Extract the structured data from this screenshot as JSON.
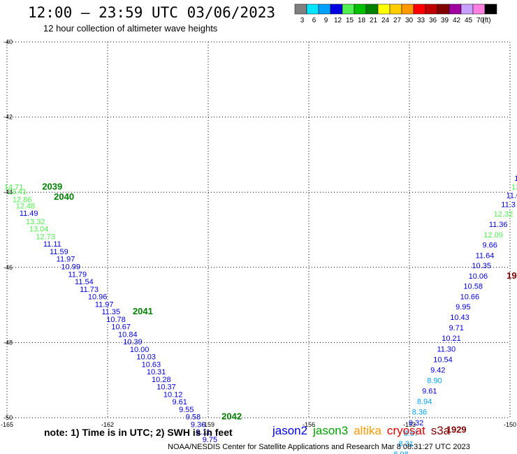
{
  "header": {
    "title": "12:00 – 23:59 UTC 03/06/2023",
    "subtitle": "12 hour collection of altimeter wave heights"
  },
  "colorbar": {
    "unit": "(ft)",
    "bins": [
      {
        "color": "#808080",
        "label": "3"
      },
      {
        "color": "#00e5ff",
        "label": "6"
      },
      {
        "color": "#00a0ff",
        "label": "9"
      },
      {
        "color": "#0000e0",
        "label": "12"
      },
      {
        "color": "#50f050",
        "label": "15"
      },
      {
        "color": "#00c000",
        "label": "18"
      },
      {
        "color": "#008000",
        "label": "21"
      },
      {
        "color": "#ffff00",
        "label": "24"
      },
      {
        "color": "#ffcc00",
        "label": "27"
      },
      {
        "color": "#ff9900",
        "label": "30"
      },
      {
        "color": "#ff0000",
        "label": "33"
      },
      {
        "color": "#c00000",
        "label": "36"
      },
      {
        "color": "#800000",
        "label": "39"
      },
      {
        "color": "#a000a0",
        "label": "42"
      },
      {
        "color": "#c8a0ff",
        "label": "45"
      },
      {
        "color": "#ff80e0",
        "label": "70"
      },
      {
        "color": "#000000",
        "label": ""
      }
    ]
  },
  "chart_data": {
    "type": "scatter",
    "xlim": [
      -165,
      -150
    ],
    "ylim": [
      -50,
      -40
    ],
    "x_ticks": [
      {
        "value": -165,
        "label": "-165"
      },
      {
        "value": -162,
        "label": "-162"
      },
      {
        "value": -159,
        "label": "-159"
      },
      {
        "value": -156,
        "label": "-156"
      },
      {
        "value": -153,
        "label": "-153"
      },
      {
        "value": -150,
        "label": "-150"
      }
    ],
    "y_ticks": [
      {
        "value": -40,
        "label": "-40"
      },
      {
        "value": -42,
        "label": "-42"
      },
      {
        "value": -44,
        "label": "-44"
      },
      {
        "value": -46,
        "label": "-46"
      },
      {
        "value": -48,
        "label": "-48"
      },
      {
        "value": -50,
        "label": "-50"
      }
    ],
    "grid": true,
    "track_left": {
      "points": [
        {
          "lon": -164.8,
          "lat": -43.93,
          "v": "14.71",
          "c": "#50f050"
        },
        {
          "lon": -164.7,
          "lat": -44.05,
          "v": "13.41",
          "c": "#50f050"
        },
        {
          "lon": -164.55,
          "lat": -44.27,
          "v": "12.86",
          "c": "#50f050"
        },
        {
          "lon": -164.45,
          "lat": -44.43,
          "v": "12.48",
          "c": "#50f050"
        },
        {
          "lon": -164.35,
          "lat": -44.63,
          "v": "11.49",
          "c": "#0000e0"
        },
        {
          "lon": -164.15,
          "lat": -44.85,
          "v": "13.32",
          "c": "#50f050"
        },
        {
          "lon": -164.05,
          "lat": -45.05,
          "v": "13.04",
          "c": "#50f050"
        },
        {
          "lon": -163.85,
          "lat": -45.25,
          "v": "12.73",
          "c": "#50f050"
        },
        {
          "lon": -163.65,
          "lat": -45.45,
          "v": "11.11",
          "c": "#0000e0"
        },
        {
          "lon": -163.45,
          "lat": -45.65,
          "v": "11.59",
          "c": "#0000e0"
        },
        {
          "lon": -163.25,
          "lat": -45.85,
          "v": "11.97",
          "c": "#0000e0"
        },
        {
          "lon": -163.1,
          "lat": -46.05,
          "v": "10.99",
          "c": "#0000e0"
        },
        {
          "lon": -162.9,
          "lat": -46.25,
          "v": "11.79",
          "c": "#0000e0"
        },
        {
          "lon": -162.7,
          "lat": -46.45,
          "v": "11.54",
          "c": "#0000e0"
        },
        {
          "lon": -162.55,
          "lat": -46.65,
          "v": "11.73",
          "c": "#0000e0"
        },
        {
          "lon": -162.3,
          "lat": -46.85,
          "v": "10.96",
          "c": "#0000e0"
        },
        {
          "lon": -162.1,
          "lat": -47.05,
          "v": "11.97",
          "c": "#0000e0"
        },
        {
          "lon": -161.9,
          "lat": -47.25,
          "v": "11.35",
          "c": "#0000e0"
        },
        {
          "lon": -161.75,
          "lat": -47.45,
          "v": "10.78",
          "c": "#0000e0"
        },
        {
          "lon": -161.6,
          "lat": -47.65,
          "v": "10.67",
          "c": "#0000e0"
        },
        {
          "lon": -161.4,
          "lat": -47.85,
          "v": "10.84",
          "c": "#0000e0"
        },
        {
          "lon": -161.25,
          "lat": -48.05,
          "v": "10.39",
          "c": "#0000e0"
        },
        {
          "lon": -161.05,
          "lat": -48.25,
          "v": "10.00",
          "c": "#0000e0"
        },
        {
          "lon": -160.85,
          "lat": -48.45,
          "v": "10.03",
          "c": "#0000e0"
        },
        {
          "lon": -160.7,
          "lat": -48.65,
          "v": "10.63",
          "c": "#0000e0"
        },
        {
          "lon": -160.55,
          "lat": -48.85,
          "v": "10.31",
          "c": "#0000e0"
        },
        {
          "lon": -160.4,
          "lat": -49.05,
          "v": "10.28",
          "c": "#0000e0"
        },
        {
          "lon": -160.25,
          "lat": -49.25,
          "v": "10.37",
          "c": "#0000e0"
        },
        {
          "lon": -160.05,
          "lat": -49.45,
          "v": "10.12",
          "c": "#0000e0"
        },
        {
          "lon": -159.85,
          "lat": -49.65,
          "v": "9.61",
          "c": "#0000e0"
        },
        {
          "lon": -159.65,
          "lat": -49.85,
          "v": "9.55",
          "c": "#0000e0"
        },
        {
          "lon": -159.45,
          "lat": -50.05,
          "v": "9.58",
          "c": "#0000e0"
        },
        {
          "lon": -159.3,
          "lat": -50.25,
          "v": "9.36",
          "c": "#0000e0"
        },
        {
          "lon": -159.15,
          "lat": -50.45,
          "v": "9.11",
          "c": "#0000e0"
        },
        {
          "lon": -158.95,
          "lat": -50.65,
          "v": "9.75",
          "c": "#0000e0"
        }
      ],
      "time_labels": [
        {
          "lon": -163.65,
          "lat": -43.93,
          "text": "2039",
          "c": "#008000"
        },
        {
          "lon": -163.3,
          "lat": -44.2,
          "text": "2040",
          "c": "#008000"
        },
        {
          "lon": -160.95,
          "lat": -47.25,
          "text": "2041",
          "c": "#008000"
        },
        {
          "lon": -158.3,
          "lat": -50.05,
          "text": "2042",
          "c": "#008000"
        }
      ]
    },
    "track_right": {
      "points": [
        {
          "lon": -149.75,
          "lat": -43.4,
          "v": "1",
          "c": "#50f050"
        },
        {
          "lon": -149.75,
          "lat": -43.7,
          "v": "11",
          "c": "#0000e0"
        },
        {
          "lon": -149.8,
          "lat": -43.93,
          "v": "13.",
          "c": "#50f050"
        },
        {
          "lon": -149.9,
          "lat": -44.15,
          "v": "11.0",
          "c": "#0000e0"
        },
        {
          "lon": -150.05,
          "lat": -44.4,
          "v": "11.3",
          "c": "#0000e0"
        },
        {
          "lon": -150.2,
          "lat": -44.65,
          "v": "12.32",
          "c": "#50f050"
        },
        {
          "lon": -150.35,
          "lat": -44.93,
          "v": "11.36",
          "c": "#0000e0"
        },
        {
          "lon": -150.5,
          "lat": -45.2,
          "v": "12.09",
          "c": "#50f050"
        },
        {
          "lon": -150.6,
          "lat": -45.47,
          "v": "9.66",
          "c": "#0000e0"
        },
        {
          "lon": -150.75,
          "lat": -45.75,
          "v": "11.64",
          "c": "#0000e0"
        },
        {
          "lon": -150.85,
          "lat": -46.02,
          "v": "10.35",
          "c": "#0000e0"
        },
        {
          "lon": -150.95,
          "lat": -46.3,
          "v": "10.06",
          "c": "#0000e0"
        },
        {
          "lon": -151.1,
          "lat": -46.57,
          "v": "10.58",
          "c": "#0000e0"
        },
        {
          "lon": -151.2,
          "lat": -46.85,
          "v": "10.66",
          "c": "#0000e0"
        },
        {
          "lon": -151.4,
          "lat": -47.12,
          "v": "9.95",
          "c": "#0000e0"
        },
        {
          "lon": -151.5,
          "lat": -47.4,
          "v": "10.43",
          "c": "#0000e0"
        },
        {
          "lon": -151.6,
          "lat": -47.68,
          "v": "9.71",
          "c": "#0000e0"
        },
        {
          "lon": -151.75,
          "lat": -47.96,
          "v": "10.21",
          "c": "#0000e0"
        },
        {
          "lon": -151.9,
          "lat": -48.24,
          "v": "11.30",
          "c": "#0000e0"
        },
        {
          "lon": -152.0,
          "lat": -48.52,
          "v": "10.54",
          "c": "#0000e0"
        },
        {
          "lon": -152.15,
          "lat": -48.8,
          "v": "9.42",
          "c": "#0000e0"
        },
        {
          "lon": -152.25,
          "lat": -49.08,
          "v": "8.90",
          "c": "#00a0ff"
        },
        {
          "lon": -152.4,
          "lat": -49.36,
          "v": "9.61",
          "c": "#0000e0"
        },
        {
          "lon": -152.55,
          "lat": -49.64,
          "v": "8.94",
          "c": "#00a0ff"
        },
        {
          "lon": -152.7,
          "lat": -49.92,
          "v": "8.36",
          "c": "#00a0ff"
        },
        {
          "lon": -152.8,
          "lat": -50.2,
          "v": "9.32",
          "c": "#0000e0"
        },
        {
          "lon": -152.95,
          "lat": -50.48,
          "v": "8.57",
          "c": "#00a0ff"
        },
        {
          "lon": -153.1,
          "lat": -50.76,
          "v": "8.31",
          "c": "#00a0ff"
        },
        {
          "lon": -153.25,
          "lat": -51.04,
          "v": "8.98",
          "c": "#00a0ff"
        }
      ],
      "time_labels": [
        {
          "lon": -151.6,
          "lat": -50.4,
          "text": "1929",
          "c": "#800000"
        },
        {
          "lon": -149.95,
          "lat": -46.3,
          "text": "19",
          "c": "#800000"
        }
      ]
    }
  },
  "note": "note:  1) Time is in UTC;  2) SWH is in feet",
  "satellites": [
    {
      "name": "jason2",
      "color": "#0000e0"
    },
    {
      "name": "jason3",
      "color": "#00a000"
    },
    {
      "name": "altika",
      "color": "#ff9900"
    },
    {
      "name": "cryosat",
      "color": "#e00000"
    },
    {
      "name": "s3a",
      "color": "#800000"
    }
  ],
  "footer": "NOAA/NESDIS Center for Satellite Applications and Research    Mar  8 08:31:27 UTC 2023"
}
